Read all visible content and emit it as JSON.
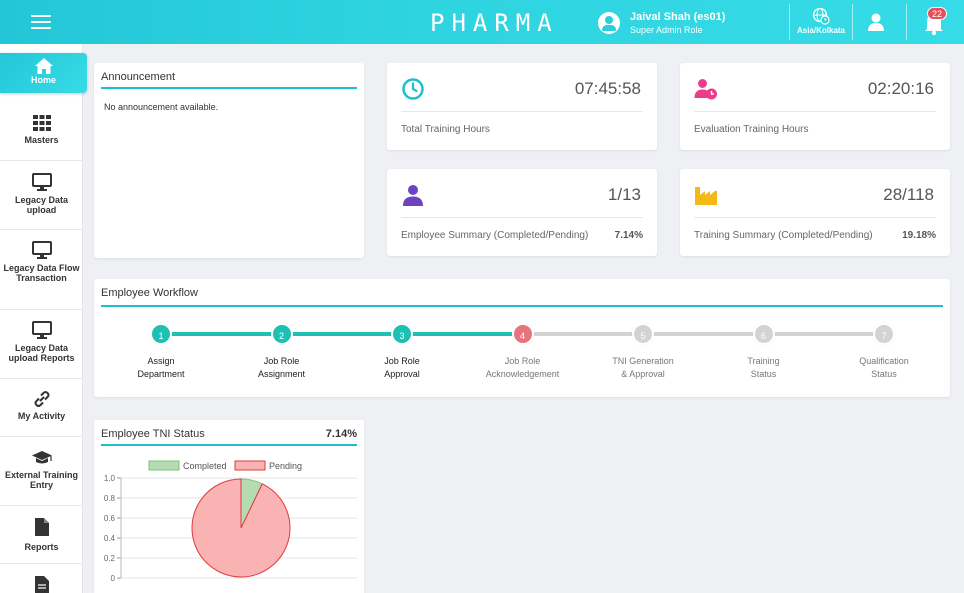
{
  "header": {
    "brand": "PHARMA",
    "user_name": "Jaival Shah (es01)",
    "user_role": "Super Admin Role",
    "timezone": "Asia/Kolkata",
    "notification_count": "22",
    "icons": [
      "hamburger-icon",
      "user-circle-icon",
      "globe-clock-icon",
      "user-icon",
      "bell-icon"
    ]
  },
  "sidebar": {
    "items": [
      {
        "label": "Home",
        "icon": "home-icon",
        "active": true
      },
      {
        "label": "Masters",
        "icon": "grid-icon"
      },
      {
        "label": "Legacy Data upload",
        "icon": "monitor-icon"
      },
      {
        "label": "Legacy Data Flow Transaction",
        "icon": "monitor-icon"
      },
      {
        "label": "Legacy Data upload Reports",
        "icon": "monitor-icon"
      },
      {
        "label": "My Activity",
        "icon": "link-icon"
      },
      {
        "label": "External Training Entry",
        "icon": "graduation-cap-icon"
      },
      {
        "label": "Reports",
        "icon": "file-icon"
      }
    ]
  },
  "announcement": {
    "title": "Announcement",
    "text": "No announcement available."
  },
  "stats": {
    "total_training": {
      "value": "07:45:58",
      "label": "Total Training Hours",
      "icon": "clock-icon",
      "color": "#1ec0cf"
    },
    "evaluation_training": {
      "value": "02:20:16",
      "label": "Evaluation Training Hours",
      "icon": "user-clock-icon",
      "color": "#e83e8c"
    },
    "employee_summary": {
      "value": "1/13",
      "label": "Employee Summary (Completed/Pending)",
      "percent": "7.14%",
      "icon": "user-icon",
      "color": "#6f42c1"
    },
    "training_summary": {
      "value": "28/118",
      "label": "Training Summary (Completed/Pending)",
      "percent": "19.18%",
      "icon": "industry-icon",
      "color": "#f5b915"
    }
  },
  "workflow": {
    "title": "Employee Workflow",
    "steps": [
      {
        "num": "1",
        "label1": "Assign",
        "label2": "Department",
        "status": "done"
      },
      {
        "num": "2",
        "label1": "Job Role",
        "label2": "Assignment",
        "status": "done"
      },
      {
        "num": "3",
        "label1": "Job Role",
        "label2": "Approval",
        "status": "done"
      },
      {
        "num": "4",
        "label1": "Job Role",
        "label2": "Acknowledgement",
        "status": "current"
      },
      {
        "num": "5",
        "label1": "TNI Generation",
        "label2": "& Approval",
        "status": "pending"
      },
      {
        "num": "6",
        "label1": "Training",
        "label2": "Status",
        "status": "pending"
      },
      {
        "num": "7",
        "label1": "Qualification",
        "label2": "Status",
        "status": "pending"
      }
    ],
    "colors": {
      "done": "#1ec0b4",
      "current": "#e7737e",
      "pending": "#d3d3d3"
    }
  },
  "tni": {
    "title": "Employee TNI Status",
    "percent": "7.14%"
  },
  "chart_data": {
    "type": "pie",
    "categories": [
      "Completed",
      "Pending"
    ],
    "values": [
      7.14,
      92.86
    ],
    "colors": [
      "#b5dbb2",
      "#f9b3b3"
    ],
    "border_colors": [
      "#7cc47a",
      "#e0393e"
    ],
    "yticks": [
      "1.0",
      "0.8",
      "0.6",
      "0.4",
      "0.2",
      "0"
    ],
    "legend_position": "top"
  }
}
